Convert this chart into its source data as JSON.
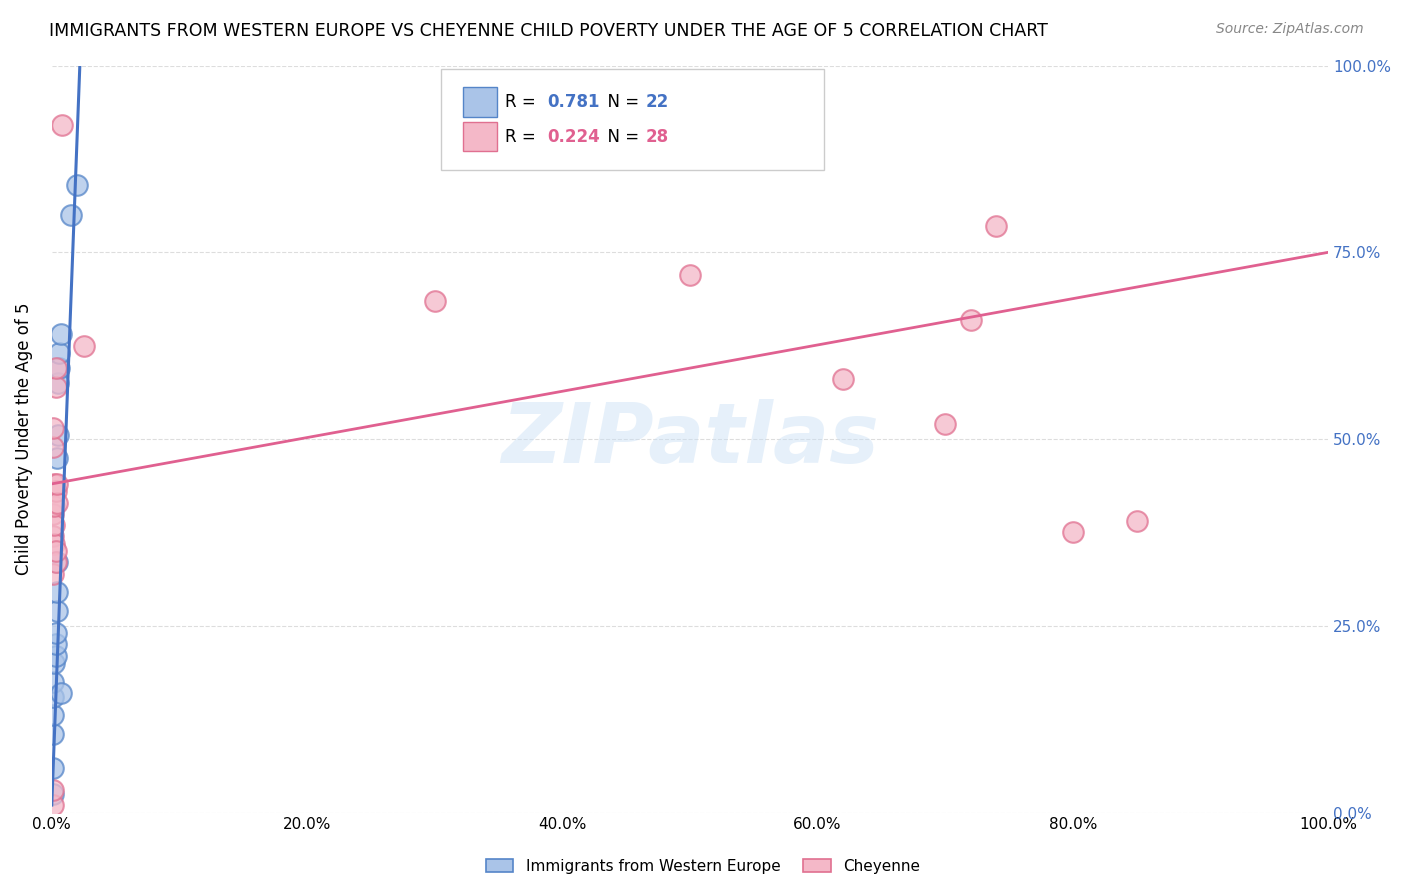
{
  "title": "IMMIGRANTS FROM WESTERN EUROPE VS CHEYENNE CHILD POVERTY UNDER THE AGE OF 5 CORRELATION CHART",
  "source": "Source: ZipAtlas.com",
  "ylabel": "Child Poverty Under the Age of 5",
  "blue_r": "0.781",
  "blue_n": "22",
  "pink_r": "0.224",
  "pink_n": "28",
  "legend_blue": "Immigrants from Western Europe",
  "legend_pink": "Cheyenne",
  "xlim": [
    0.0,
    1.0
  ],
  "ylim": [
    0.0,
    1.0
  ],
  "xticks": [
    0.0,
    0.2,
    0.4,
    0.6,
    0.8,
    1.0
  ],
  "yticks": [
    0.0,
    0.25,
    0.5,
    0.75,
    1.0
  ],
  "xtick_labels": [
    "0.0%",
    "20.0%",
    "40.0%",
    "60.0%",
    "80.0%",
    "100.0%"
  ],
  "ytick_labels_right": [
    "0.0%",
    "25.0%",
    "50.0%",
    "75.0%",
    "100.0%"
  ],
  "blue_points": [
    [
      0.001,
      0.025
    ],
    [
      0.001,
      0.06
    ],
    [
      0.001,
      0.105
    ],
    [
      0.001,
      0.13
    ],
    [
      0.001,
      0.155
    ],
    [
      0.001,
      0.175
    ],
    [
      0.002,
      0.2
    ],
    [
      0.003,
      0.21
    ],
    [
      0.003,
      0.225
    ],
    [
      0.003,
      0.24
    ],
    [
      0.004,
      0.27
    ],
    [
      0.004,
      0.295
    ],
    [
      0.004,
      0.335
    ],
    [
      0.004,
      0.475
    ],
    [
      0.005,
      0.505
    ],
    [
      0.005,
      0.575
    ],
    [
      0.006,
      0.595
    ],
    [
      0.006,
      0.615
    ],
    [
      0.007,
      0.64
    ],
    [
      0.007,
      0.16
    ],
    [
      0.015,
      0.8
    ],
    [
      0.02,
      0.84
    ]
  ],
  "pink_points": [
    [
      0.001,
      0.01
    ],
    [
      0.001,
      0.03
    ],
    [
      0.001,
      0.32
    ],
    [
      0.001,
      0.37
    ],
    [
      0.001,
      0.4
    ],
    [
      0.001,
      0.49
    ],
    [
      0.001,
      0.515
    ],
    [
      0.002,
      0.36
    ],
    [
      0.002,
      0.385
    ],
    [
      0.002,
      0.41
    ],
    [
      0.002,
      0.44
    ],
    [
      0.003,
      0.335
    ],
    [
      0.003,
      0.35
    ],
    [
      0.003,
      0.43
    ],
    [
      0.003,
      0.57
    ],
    [
      0.003,
      0.595
    ],
    [
      0.004,
      0.415
    ],
    [
      0.004,
      0.44
    ],
    [
      0.008,
      0.92
    ],
    [
      0.025,
      0.625
    ],
    [
      0.3,
      0.685
    ],
    [
      0.5,
      0.72
    ],
    [
      0.62,
      0.58
    ],
    [
      0.7,
      0.52
    ],
    [
      0.72,
      0.66
    ],
    [
      0.74,
      0.785
    ],
    [
      0.8,
      0.375
    ],
    [
      0.85,
      0.39
    ]
  ],
  "blue_line_x": [
    0.0,
    0.022
  ],
  "blue_line_y": [
    0.01,
    1.0
  ],
  "pink_line_x": [
    0.0,
    1.0
  ],
  "pink_line_y": [
    0.44,
    0.75
  ],
  "background_color": "#ffffff",
  "blue_fill": "#aac4e8",
  "blue_edge": "#5585c8",
  "pink_fill": "#f4b8c8",
  "pink_edge": "#e07090",
  "blue_line_color": "#4472c4",
  "pink_line_color": "#e06090",
  "watermark": "ZIPatlas",
  "grid_color": "#dddddd"
}
